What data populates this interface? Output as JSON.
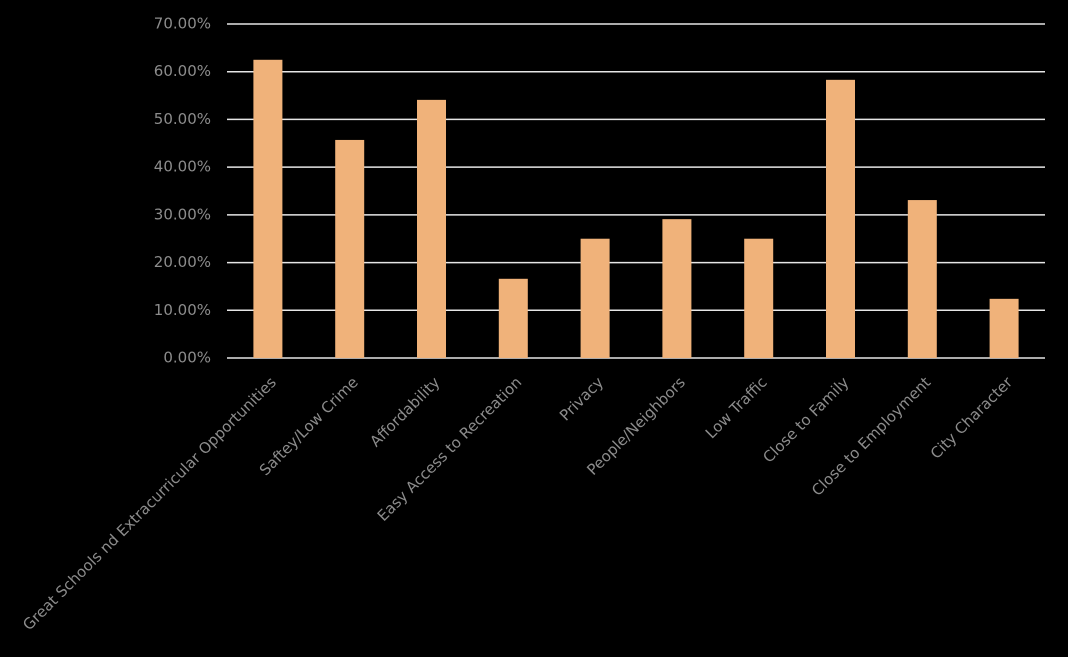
{
  "chart_data": {
    "type": "bar",
    "categories": [
      "Great Schools nd Extracurricular Opportunities",
      "Saftey/Low Crime",
      "Affordability",
      "Easy Access to Recreation",
      "Privacy",
      "People/Neighbors",
      "Low Traffic",
      "Close to Family",
      "Close to Employment",
      "City Character"
    ],
    "values": [
      62.5,
      45.7,
      54.1,
      16.6,
      25,
      29.1,
      25,
      58.3,
      33.1,
      12.4
    ],
    "color": "#f0b27a",
    "ylim": [
      0,
      70
    ],
    "yticks": [
      {
        "value": 0,
        "label": "0.00%"
      },
      {
        "value": 10,
        "label": "10.00%"
      },
      {
        "value": 20,
        "label": "20.00%"
      },
      {
        "value": 30,
        "label": "30.00%"
      },
      {
        "value": 40,
        "label": "40.00%"
      },
      {
        "value": 50,
        "label": "50.00%"
      },
      {
        "value": 60,
        "label": "60.00%"
      },
      {
        "value": 70,
        "label": "70.00%"
      }
    ],
    "grid": true
  }
}
